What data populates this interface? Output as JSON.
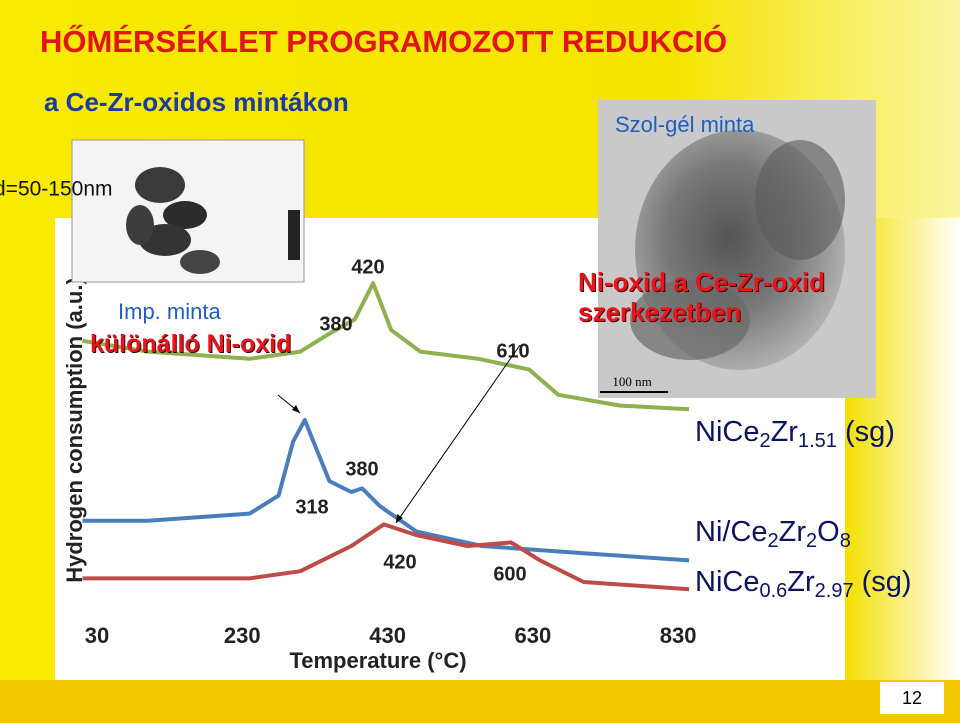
{
  "slide": {
    "title": "HŐMÉRSÉKLET PROGRAMOZOTT REDUKCIÓ",
    "subtitle": "a Ce-Zr-oxidos mintákon",
    "sol_gel_label": "Szol-gél minta",
    "particle_size": "d=50-150nm",
    "imp_label": "Imp. minta",
    "imp_note": "különálló Ni-oxid",
    "sol_gel_note": "Ni-oxid a Ce-Zr-oxid szerkezetben",
    "scale_bar": "100 nm",
    "page_number": "12"
  },
  "chart_data": {
    "type": "line",
    "x_label": "Temperature (°C)",
    "y_label": "Hydrogen consumption (a.u.)",
    "xlim": [
      0,
      850
    ],
    "xticks": [
      30,
      230,
      430,
      630,
      830
    ],
    "ylim": [
      0,
      100
    ],
    "series": [
      {
        "name": "NiCe2Zr1.51 (sg)",
        "color": "#8fb04f",
        "x": [
          10,
          100,
          240,
          310,
          350,
          385,
          410,
          435,
          475,
          555,
          625,
          665,
          750,
          845
        ],
        "values": [
          72,
          69,
          67,
          69,
          74,
          78,
          88,
          75,
          69,
          67,
          64,
          57,
          54,
          53
        ]
      },
      {
        "name": "Ni/Ce2Zr2O8",
        "color": "#4a7ebb",
        "x": [
          10,
          100,
          240,
          280,
          300,
          316,
          330,
          350,
          380,
          395,
          420,
          470,
          560,
          700,
          845
        ],
        "values": [
          22,
          22,
          24,
          29,
          44,
          50,
          43,
          33,
          30,
          31,
          26,
          19,
          15,
          13,
          11
        ]
      },
      {
        "name": "NiCe0.6Zr2.97 (sg)",
        "color": "#be4b48",
        "x": [
          10,
          240,
          310,
          380,
          425,
          470,
          540,
          600,
          640,
          700,
          845
        ],
        "values": [
          6,
          6,
          8,
          15,
          21,
          18,
          15,
          16,
          11,
          5,
          3
        ]
      }
    ],
    "peak_labels": [
      "420",
      "380",
      "610",
      "380",
      "318",
      "420",
      "600"
    ]
  }
}
